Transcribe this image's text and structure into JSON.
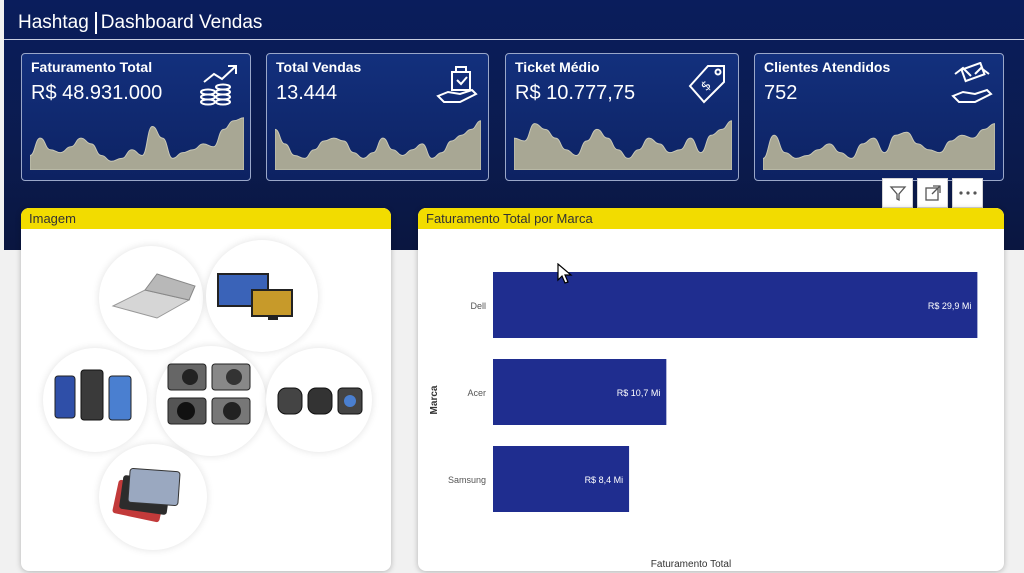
{
  "header": {
    "brand": "Hashtag",
    "page_title": "Dashboard Vendas"
  },
  "kpis": [
    {
      "title": "Faturamento Total",
      "value": "R$ 48.931.000",
      "icon": "revenue-growth-icon",
      "trend": [
        0.25,
        0.55,
        0.35,
        0.3,
        0.4,
        0.55,
        0.45,
        0.25,
        0.15,
        0.2,
        0.35,
        0.25,
        0.75,
        0.55,
        0.2,
        0.3,
        0.35,
        0.45,
        0.4,
        0.7,
        0.85,
        0.9
      ]
    },
    {
      "title": "Total Vendas",
      "value": "13.444",
      "icon": "shopping-bag-hand-icon",
      "trend": [
        0.7,
        0.45,
        0.25,
        0.2,
        0.35,
        0.5,
        0.55,
        0.5,
        0.3,
        0.2,
        0.3,
        0.55,
        0.35,
        0.25,
        0.35,
        0.45,
        0.2,
        0.3,
        0.5,
        0.6,
        0.7,
        0.85
      ]
    },
    {
      "title": "Ticket Médio",
      "value": "R$ 10.777,75",
      "icon": "price-tag-icon",
      "trend": [
        0.55,
        0.5,
        0.8,
        0.7,
        0.55,
        0.35,
        0.25,
        0.5,
        0.7,
        0.55,
        0.35,
        0.2,
        0.35,
        0.55,
        0.45,
        0.3,
        0.35,
        0.55,
        0.3,
        0.6,
        0.7,
        0.85
      ]
    },
    {
      "title": "Clientes Atendidos",
      "value": "752",
      "icon": "handshake-money-icon",
      "trend": [
        0.2,
        0.6,
        0.3,
        0.2,
        0.25,
        0.35,
        0.45,
        0.3,
        0.2,
        0.45,
        0.55,
        0.3,
        0.6,
        0.65,
        0.45,
        0.35,
        0.3,
        0.5,
        0.6,
        0.55,
        0.7,
        0.8
      ]
    }
  ],
  "image_card": {
    "title": "Imagem"
  },
  "brand_chart": {
    "title": "Faturamento Total por Marca",
    "chart_data": {
      "type": "bar",
      "orientation": "horizontal",
      "categories": [
        "Dell",
        "Acer",
        "Samsung"
      ],
      "values": [
        29.9,
        10.7,
        8.4
      ],
      "data_labels": [
        "R$ 29,9 Mi",
        "R$ 10,7 Mi",
        "R$ 8,4 Mi"
      ],
      "xlabel": "Faturamento Total",
      "ylabel": "Marca",
      "color": "#1f2d8f",
      "xlim": [
        0,
        30
      ]
    }
  },
  "visual_header_icons": [
    "filter-icon",
    "focus-mode-icon",
    "more-options-icon"
  ]
}
